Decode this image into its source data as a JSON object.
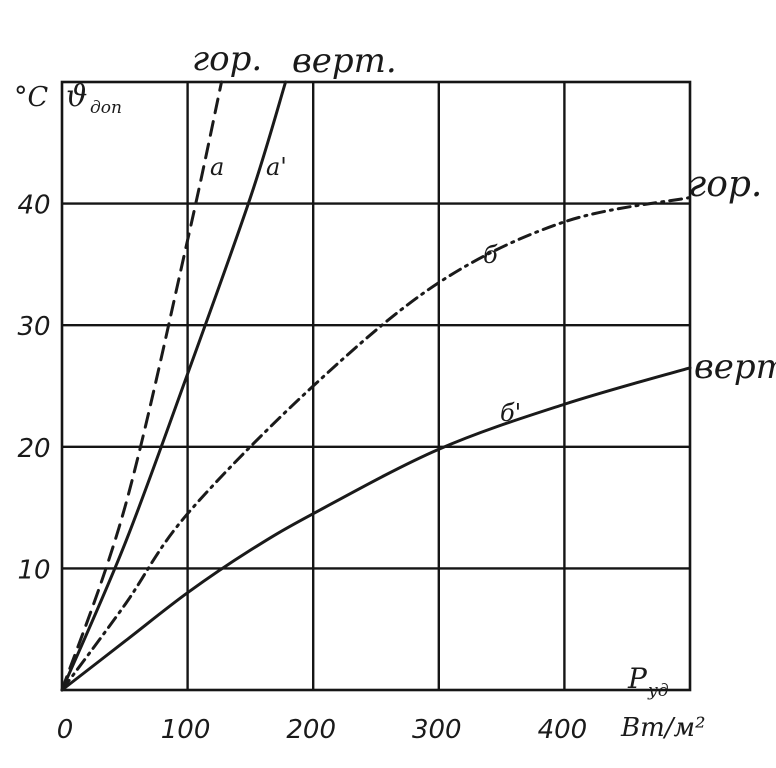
{
  "chart_data": {
    "type": "line",
    "x": {
      "label": "P",
      "label_sub": "уд",
      "unit": "Вт/м²",
      "range": [
        0,
        500
      ],
      "ticks": [
        0,
        100,
        200,
        300,
        400
      ],
      "tick_labels": [
        "0",
        "100",
        "200",
        "300",
        "400"
      ]
    },
    "y": {
      "unit": "°C",
      "symbol": "ϑ",
      "symbol_sub": "доп",
      "range": [
        0,
        50
      ],
      "ticks": [
        10,
        20,
        30,
        40
      ],
      "tick_labels": [
        "10",
        "20",
        "30",
        "40"
      ]
    },
    "grid": true,
    "series": [
      {
        "label": "а",
        "group": "гор",
        "dash": "dashed",
        "points": [
          [
            0,
            0
          ],
          [
            50,
            15
          ],
          [
            100,
            37
          ],
          [
            127,
            50
          ]
        ]
      },
      {
        "label": "а'",
        "group": "верт",
        "dash": "solid",
        "points": [
          [
            0,
            0
          ],
          [
            50,
            12
          ],
          [
            100,
            26
          ],
          [
            150,
            40.5
          ],
          [
            178,
            50
          ]
        ]
      },
      {
        "label": "б",
        "group": "гор",
        "dash": "dashdot",
        "points": [
          [
            0,
            0
          ],
          [
            50,
            7
          ],
          [
            100,
            14.5
          ],
          [
            200,
            25
          ],
          [
            300,
            33.5
          ],
          [
            400,
            38.5
          ],
          [
            500,
            40.5
          ]
        ]
      },
      {
        "label": "б'",
        "group": "верт",
        "dash": "solid",
        "points": [
          [
            0,
            0
          ],
          [
            50,
            4
          ],
          [
            100,
            8
          ],
          [
            150,
            11.5
          ],
          [
            200,
            14.5
          ],
          [
            300,
            19.8
          ],
          [
            400,
            23.5
          ],
          [
            500,
            26.5
          ]
        ]
      }
    ],
    "annotations": {
      "top_a": "гор.",
      "top_a_prime": "верт.",
      "right_b": "гор.",
      "right_b_prime": "верт"
    }
  }
}
